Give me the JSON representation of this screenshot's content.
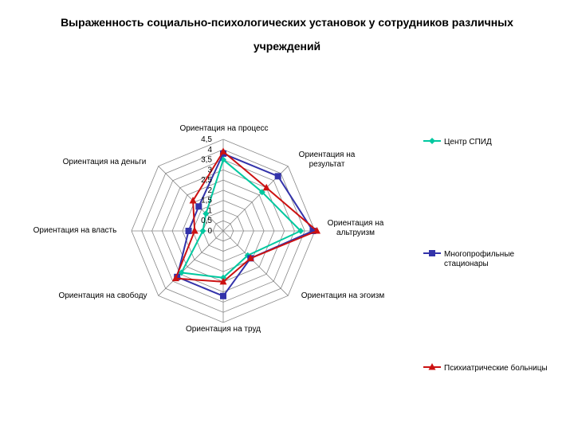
{
  "chart_data": {
    "type": "radar",
    "title_line1": "Выраженность социально-психологических установок у сотрудников различных",
    "title_line2": "учреждений",
    "categories": [
      "Ориентация на процесс",
      "Ориентация на результат",
      "Ориентация на альтруизм",
      "Ориентация на эгоизм",
      "Ориентация на труд",
      "Ориентация на свободу",
      "Ориентация на власть",
      "Ориентация на деньги"
    ],
    "category_lines": [
      [
        "Ориентация на процесс"
      ],
      [
        "Ориентация на",
        "результат"
      ],
      [
        "Ориентация на",
        "альтруизм"
      ],
      [
        "Ориентация на эгоизм"
      ],
      [
        "Ориентация на труд"
      ],
      [
        "Ориентация на свободу"
      ],
      [
        "Ориентация на власть"
      ],
      [
        "Ориентация на деньги"
      ]
    ],
    "rlim": [
      0,
      4.5
    ],
    "ticks": [
      "0",
      "0,5",
      "1",
      "1,5",
      "2",
      "2,5",
      "3",
      "3,5",
      "4",
      "4,5"
    ],
    "tick_values": [
      0,
      0.5,
      1,
      1.5,
      2,
      2.5,
      3,
      3.5,
      4,
      4.5
    ],
    "series": [
      {
        "name": "Центр СПИД",
        "name_lines": [
          "Центр СПИД"
        ],
        "color": "#00c8a0",
        "marker": "diamond",
        "values": [
          3.5,
          2.7,
          3.8,
          1.7,
          2.3,
          2.9,
          1.0,
          1.2
        ]
      },
      {
        "name": "Многопрофильные стационары",
        "name_lines": [
          "Многопрофильные",
          "стационары"
        ],
        "color": "#3333aa",
        "marker": "square",
        "values": [
          3.8,
          3.8,
          4.4,
          1.9,
          3.2,
          3.2,
          1.7,
          1.7
        ]
      },
      {
        "name": "Психиатрические больницы",
        "name_lines": [
          "Психиатрические больницы"
        ],
        "color": "#cc1111",
        "marker": "triangle",
        "values": [
          3.9,
          3.0,
          4.6,
          1.9,
          2.5,
          3.3,
          1.4,
          2.1
        ]
      }
    ],
    "legend_position": "right",
    "grid": true
  }
}
